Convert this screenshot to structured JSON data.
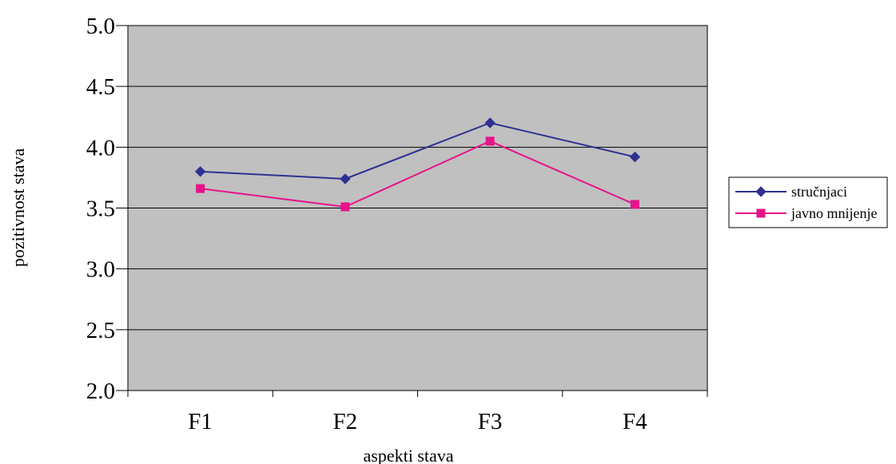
{
  "chart_data": {
    "type": "line",
    "categories": [
      "F1",
      "F2",
      "F3",
      "F4"
    ],
    "series": [
      {
        "name": "stručnjaci",
        "values": [
          3.8,
          3.74,
          4.2,
          3.92
        ],
        "color": "#2E3192",
        "marker": "diamond"
      },
      {
        "name": "javno mnijenje",
        "values": [
          3.66,
          3.51,
          4.05,
          3.53
        ],
        "color": "#E6138A",
        "marker": "square"
      }
    ],
    "xlabel": "aspekti stava",
    "ylabel": "pozitivnost stava",
    "ylim": [
      2.0,
      5.0
    ],
    "yticks": [
      "2.0",
      "2.5",
      "3.0",
      "3.5",
      "4.0",
      "4.5",
      "5.0"
    ],
    "grid": true,
    "legend": "right",
    "plot_background": "#C0C0C0",
    "gridline_color": "#000000"
  }
}
